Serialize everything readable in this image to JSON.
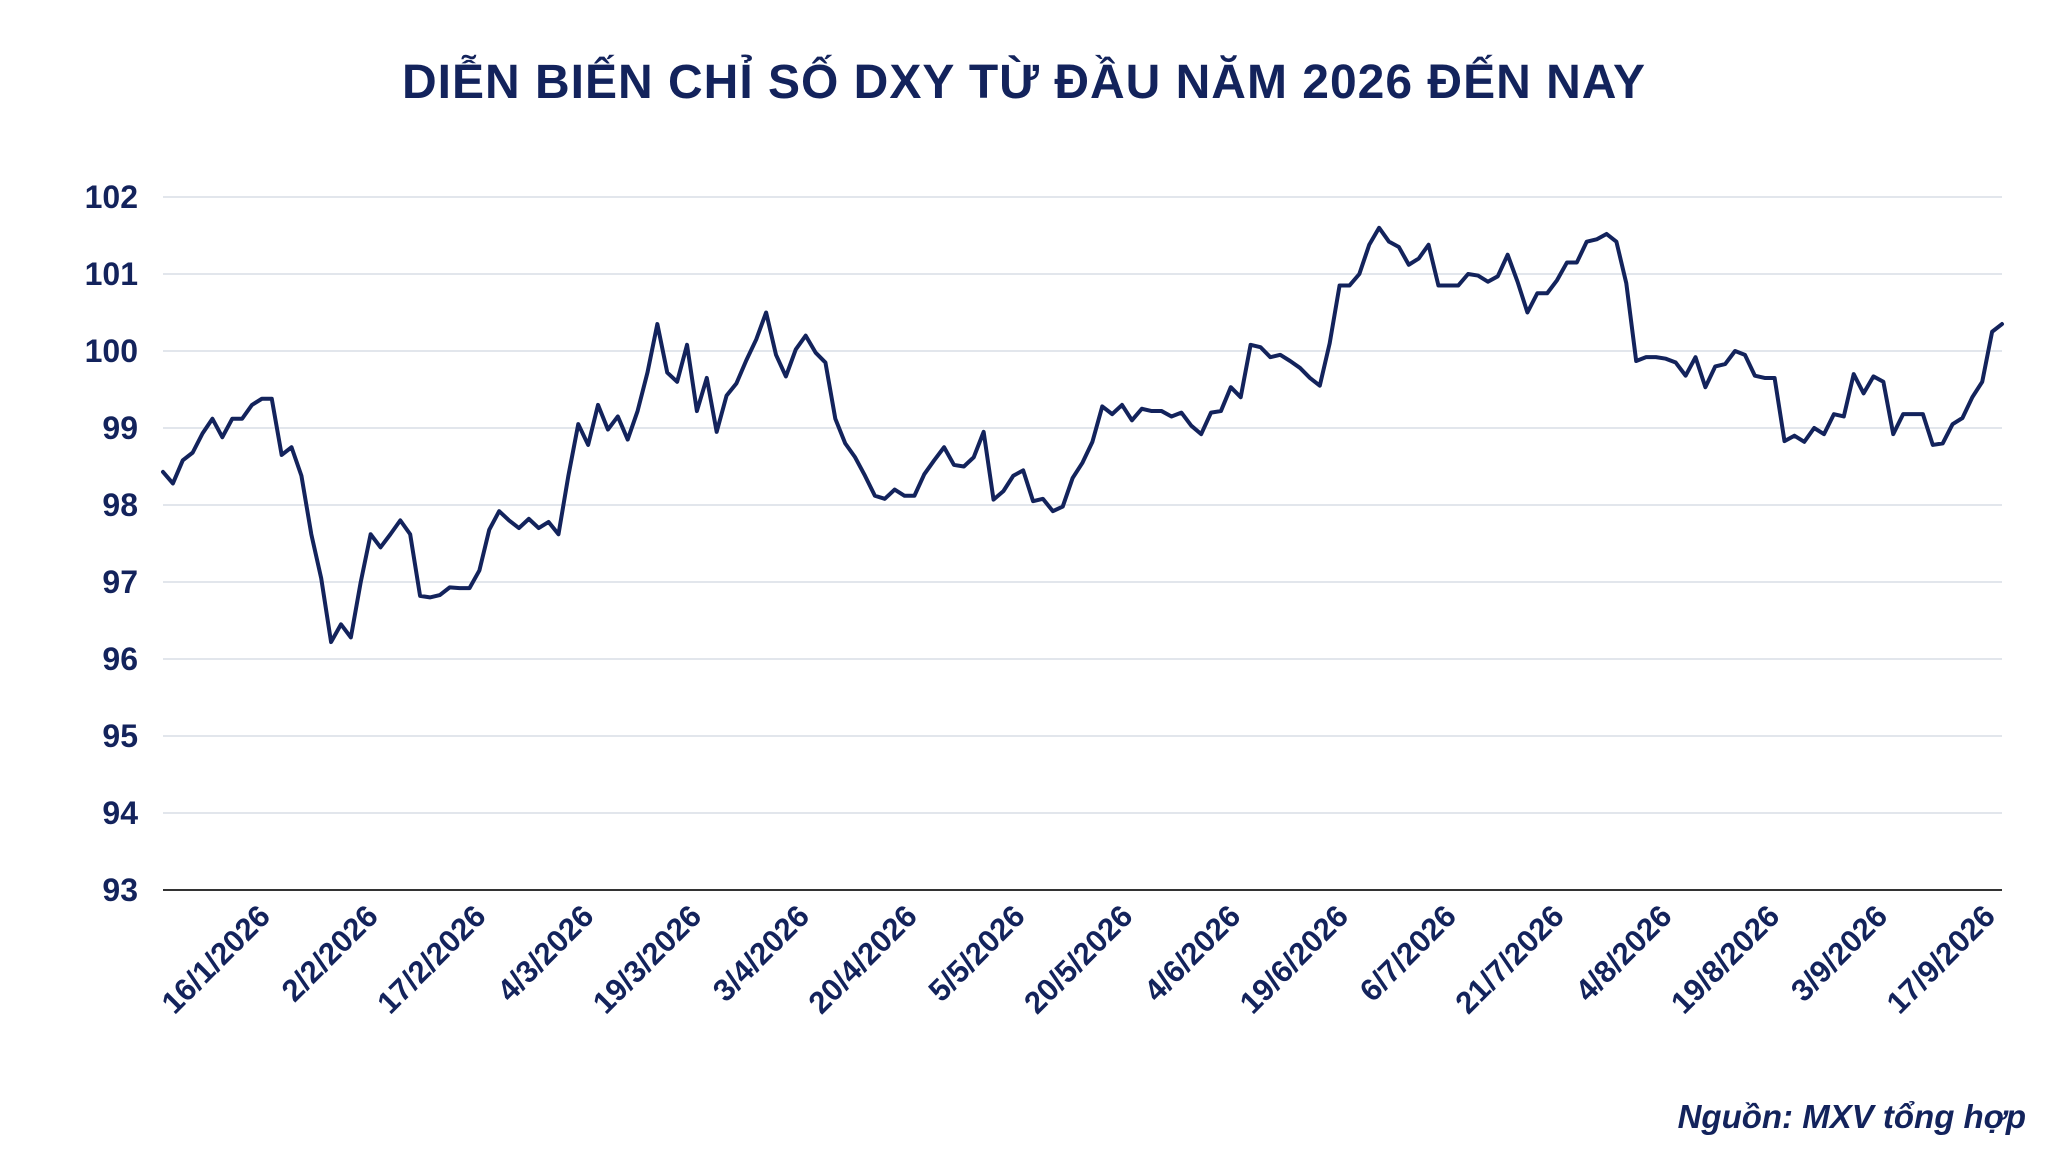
{
  "title": "DIỄN BIẾN CHỈ SỐ DXY TỪ ĐẦU NĂM 2026 ĐẾN NAY",
  "source": "Nguồn: MXV tổng hợp",
  "colors": {
    "line": "#13235c",
    "text": "#13235c",
    "grid": "#d9dde6",
    "axis": "#333333"
  },
  "chart_data": {
    "type": "line",
    "title": "DIỄN BIẾN CHỈ SỐ DXY TỪ ĐẦU NĂM 2026 ĐẾN NAY",
    "xlabel": "",
    "ylabel": "",
    "ylim": [
      93,
      102
    ],
    "yticks": [
      93,
      94,
      95,
      96,
      97,
      98,
      99,
      100,
      101,
      102
    ],
    "grid": true,
    "legend": "none",
    "x_tick_labels": [
      "16/1/2026",
      "2/2/2026",
      "17/2/2026",
      "4/3/2026",
      "19/3/2026",
      "3/4/2026",
      "20/4/2026",
      "5/5/2026",
      "20/5/2026",
      "4/6/2026",
      "19/6/2026",
      "6/7/2026",
      "21/7/2026",
      "4/8/2026",
      "19/8/2026",
      "3/9/2026",
      "17/9/2026"
    ],
    "series": [
      {
        "values": [
          98.43,
          98.28,
          98.58,
          98.68,
          98.93,
          99.12,
          98.88,
          99.12,
          99.12,
          99.3,
          99.38,
          99.38,
          98.65,
          98.75,
          98.38,
          97.62,
          97.05,
          96.22,
          96.45,
          96.28,
          97.0,
          97.62,
          97.45,
          97.62,
          97.8,
          97.62,
          96.82,
          96.8,
          96.83,
          96.93,
          96.92,
          96.92,
          97.15,
          97.68,
          97.92,
          97.8,
          97.7,
          97.82,
          97.7,
          97.78,
          97.62,
          98.38,
          99.05,
          98.78,
          99.3,
          98.98,
          99.15,
          98.85,
          99.22,
          99.72,
          100.35,
          99.72,
          99.6,
          100.08,
          99.22,
          99.65,
          98.95,
          99.42,
          99.58,
          99.88,
          100.15,
          100.5,
          99.95,
          99.67,
          100.02,
          100.2,
          99.98,
          99.85,
          99.12,
          98.8,
          98.62,
          98.38,
          98.12,
          98.08,
          98.2,
          98.12,
          98.12,
          98.4,
          98.58,
          98.75,
          98.52,
          98.5,
          98.62,
          98.95,
          98.07,
          98.18,
          98.38,
          98.45,
          98.05,
          98.08,
          97.92,
          97.98,
          98.35,
          98.55,
          98.82,
          99.28,
          99.18,
          99.3,
          99.1,
          99.25,
          99.22,
          99.22,
          99.15,
          99.2,
          99.03,
          98.92,
          99.2,
          99.22,
          99.53,
          99.4,
          100.08,
          100.05,
          99.92,
          99.95,
          99.87,
          99.78,
          99.65,
          99.55,
          100.1,
          100.85,
          100.85,
          101.0,
          101.38,
          101.6,
          101.42,
          101.35,
          101.12,
          101.2,
          101.38,
          100.85,
          100.85,
          100.85,
          101.0,
          100.98,
          100.9,
          100.97,
          101.25,
          100.9,
          100.5,
          100.75,
          100.75,
          100.92,
          101.15,
          101.15,
          101.42,
          101.45,
          101.52,
          101.42,
          100.88,
          99.87,
          99.92,
          99.92,
          99.9,
          99.85,
          99.68,
          99.92,
          99.53,
          99.8,
          99.83,
          100.0,
          99.95,
          99.68,
          99.65,
          99.65,
          98.83,
          98.9,
          98.82,
          99.0,
          98.92,
          99.18,
          99.15,
          99.7,
          99.45,
          99.67,
          99.6,
          98.92,
          99.18,
          99.18,
          99.18,
          98.78,
          98.8,
          99.05,
          99.13,
          99.4,
          99.6,
          100.25,
          100.35
        ]
      }
    ]
  }
}
